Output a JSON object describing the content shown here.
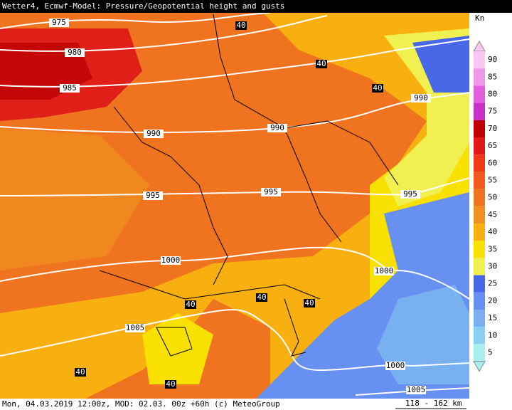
{
  "header": {
    "title": "Wetter4, Ecmwf-Model: Pressure/Geopotential height and gusts"
  },
  "legend": {
    "unit": "Kn",
    "levels": [
      {
        "label": 90,
        "color": "#f8c8f0"
      },
      {
        "label": 85,
        "color": "#f098e8"
      },
      {
        "label": 80,
        "color": "#e060e0"
      },
      {
        "label": 75,
        "color": "#c830c8"
      },
      {
        "label": 70,
        "color": "#c00000"
      },
      {
        "label": 65,
        "color": "#e01818"
      },
      {
        "label": 60,
        "color": "#f03818"
      },
      {
        "label": 55,
        "color": "#f05a1c"
      },
      {
        "label": 50,
        "color": "#f07420"
      },
      {
        "label": 45,
        "color": "#f09020"
      },
      {
        "label": 40,
        "color": "#f8b010"
      },
      {
        "label": 35,
        "color": "#f8e000"
      },
      {
        "label": 30,
        "color": "#f0f050"
      },
      {
        "label": 25,
        "color": "#4868e8"
      },
      {
        "label": 20,
        "color": "#6890f0"
      },
      {
        "label": 15,
        "color": "#78b0f0"
      },
      {
        "label": 10,
        "color": "#88d0f0"
      },
      {
        "label": 5,
        "color": "#a8f0f0"
      }
    ]
  },
  "isobars": [
    {
      "label": "975"
    },
    {
      "label": "980"
    },
    {
      "label": "985"
    },
    {
      "label": "990"
    },
    {
      "label": "990"
    },
    {
      "label": "990"
    },
    {
      "label": "995"
    },
    {
      "label": "995"
    },
    {
      "label": "995"
    },
    {
      "label": "1000"
    },
    {
      "label": "1000"
    },
    {
      "label": "1005"
    },
    {
      "label": "1000"
    },
    {
      "label": "1005"
    }
  ],
  "contours": [
    {
      "label": "40"
    },
    {
      "label": "40"
    },
    {
      "label": "40"
    },
    {
      "label": "40"
    },
    {
      "label": "40"
    },
    {
      "label": "40"
    },
    {
      "label": "40"
    },
    {
      "label": "40"
    }
  ],
  "footer": {
    "text": "Mon, 04.03.2019 12:00z, MOD: 02.03. 00z +60h (c) MeteoGroup",
    "scale": "118 - 162 km"
  }
}
